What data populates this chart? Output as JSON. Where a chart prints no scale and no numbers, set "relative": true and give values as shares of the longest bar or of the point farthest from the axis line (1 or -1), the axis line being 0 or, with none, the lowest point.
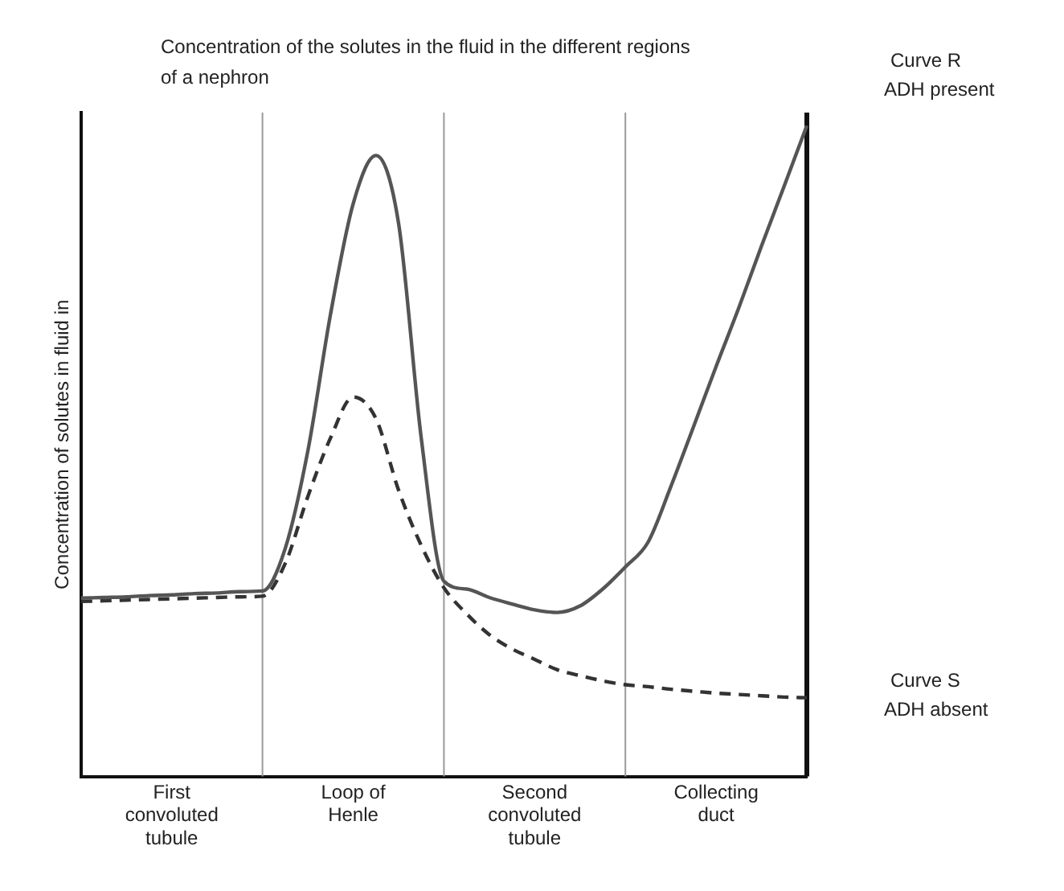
{
  "chart_data": {
    "type": "line",
    "title": "Concentration of the solutes in the fluid in the different regions of a nephron",
    "ylabel": "Concentration of solutes in fluid in",
    "relative": true,
    "categories": [
      null,
      null,
      null,
      null,
      "First convoluted tubule",
      null,
      null,
      null,
      null,
      null,
      null,
      null,
      "Loop of Henle",
      null,
      null,
      null,
      null,
      null,
      null,
      null,
      "Second convoluted tubule",
      null,
      null,
      null,
      null,
      null,
      null,
      null,
      "Collecting duct",
      null,
      null,
      null,
      null
    ],
    "grid": "x",
    "legend": false,
    "marker": "none",
    "series": [
      {
        "name": "Curve R\nADH present",
        "color": "#555555",
        "line_style": "solid",
        "values": [
          0.274,
          0.275,
          0.276,
          0.278,
          0.279,
          0.281,
          0.282,
          0.284,
          0.285,
          0.35,
          0.5,
          0.71,
          0.88,
          0.954,
          0.85,
          0.52,
          0.3,
          0.288,
          0.275,
          0.265,
          0.256,
          0.252,
          0.262,
          0.288,
          0.322,
          0.36,
          0.445,
          0.537,
          0.63,
          0.72,
          0.815,
          0.907,
          1.0
        ]
      },
      {
        "name": "Curve S\nADH absent",
        "color": "#333333",
        "line_style": "dashed",
        "values": [
          0.269,
          0.27,
          0.271,
          0.272,
          0.273,
          0.274,
          0.275,
          0.276,
          0.277,
          0.327,
          0.43,
          0.52,
          0.583,
          0.55,
          0.44,
          0.355,
          0.29,
          0.25,
          0.218,
          0.196,
          0.18,
          0.164,
          0.155,
          0.147,
          0.141,
          0.138,
          0.134,
          0.131,
          0.128,
          0.126,
          0.124,
          0.122,
          0.121
        ]
      }
    ]
  }
}
